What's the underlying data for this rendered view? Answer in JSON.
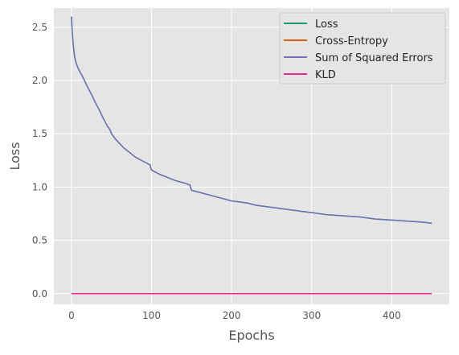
{
  "chart_data": {
    "type": "line",
    "xlabel": "Epochs",
    "ylabel": "Loss",
    "xlim": [
      -22,
      472
    ],
    "ylim": [
      -0.1,
      2.68
    ],
    "xticks": [
      0,
      100,
      200,
      300,
      400
    ],
    "yticks": [
      0.0,
      0.5,
      1.0,
      1.5,
      2.0,
      2.5
    ],
    "xtick_labels": [
      "0",
      "100",
      "200",
      "300",
      "400"
    ],
    "ytick_labels": [
      "0.0",
      "0.5",
      "1.0",
      "1.5",
      "2.0",
      "2.5"
    ],
    "grid": true,
    "legend_position": "top-right",
    "series": [
      {
        "name": "Loss",
        "color": "#1b9e77",
        "x": [
          0,
          1,
          2,
          3,
          4,
          6,
          8,
          10,
          15,
          20,
          25,
          30,
          35,
          40,
          45,
          48,
          49,
          50,
          55,
          60,
          65,
          70,
          75,
          80,
          85,
          90,
          95,
          98,
          99,
          100,
          110,
          120,
          130,
          140,
          148,
          149,
          150,
          160,
          170,
          180,
          190,
          200,
          210,
          220,
          230,
          240,
          250,
          260,
          270,
          280,
          290,
          300,
          320,
          340,
          360,
          380,
          400,
          420,
          440,
          450
        ],
        "y": [
          2.6,
          2.45,
          2.35,
          2.28,
          2.22,
          2.16,
          2.12,
          2.09,
          2.02,
          1.94,
          1.87,
          1.79,
          1.72,
          1.64,
          1.57,
          1.54,
          1.52,
          1.5,
          1.45,
          1.41,
          1.37,
          1.34,
          1.31,
          1.28,
          1.26,
          1.24,
          1.22,
          1.21,
          1.18,
          1.16,
          1.12,
          1.09,
          1.06,
          1.04,
          1.02,
          0.99,
          0.97,
          0.95,
          0.93,
          0.91,
          0.89,
          0.87,
          0.86,
          0.85,
          0.83,
          0.82,
          0.81,
          0.8,
          0.79,
          0.78,
          0.77,
          0.76,
          0.74,
          0.73,
          0.72,
          0.7,
          0.69,
          0.68,
          0.67,
          0.66
        ]
      },
      {
        "name": "Cross-Entropy",
        "color": "#d95f02",
        "x": [
          0,
          450
        ],
        "y": [
          0.0,
          0.0
        ]
      },
      {
        "name": "Sum of Squared Errors",
        "color": "#7570b3",
        "x": [
          0,
          1,
          2,
          3,
          4,
          6,
          8,
          10,
          15,
          20,
          25,
          30,
          35,
          40,
          45,
          48,
          49,
          50,
          55,
          60,
          65,
          70,
          75,
          80,
          85,
          90,
          95,
          98,
          99,
          100,
          110,
          120,
          130,
          140,
          148,
          149,
          150,
          160,
          170,
          180,
          190,
          200,
          210,
          220,
          230,
          240,
          250,
          260,
          270,
          280,
          290,
          300,
          320,
          340,
          360,
          380,
          400,
          420,
          440,
          450
        ],
        "y": [
          2.6,
          2.45,
          2.35,
          2.28,
          2.22,
          2.16,
          2.12,
          2.09,
          2.02,
          1.94,
          1.87,
          1.79,
          1.72,
          1.64,
          1.57,
          1.54,
          1.52,
          1.5,
          1.45,
          1.41,
          1.37,
          1.34,
          1.31,
          1.28,
          1.26,
          1.24,
          1.22,
          1.21,
          1.18,
          1.16,
          1.12,
          1.09,
          1.06,
          1.04,
          1.02,
          0.99,
          0.97,
          0.95,
          0.93,
          0.91,
          0.89,
          0.87,
          0.86,
          0.85,
          0.83,
          0.82,
          0.81,
          0.8,
          0.79,
          0.78,
          0.77,
          0.76,
          0.74,
          0.73,
          0.72,
          0.7,
          0.69,
          0.68,
          0.67,
          0.66
        ]
      },
      {
        "name": "KLD",
        "color": "#e7298a",
        "x": [
          0,
          450
        ],
        "y": [
          0.0,
          0.0
        ]
      }
    ]
  },
  "style": {
    "axes_background": "#e5e5e5",
    "grid_color": "#ffffff",
    "tick_color": "#555555",
    "label_color": "#555555"
  }
}
